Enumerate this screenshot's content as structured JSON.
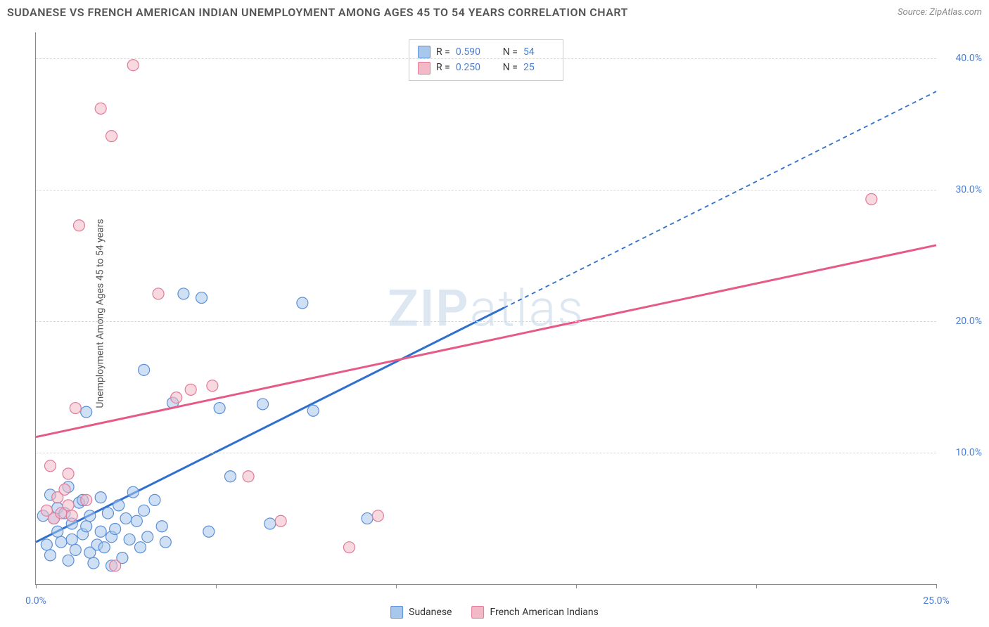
{
  "title": "SUDANESE VS FRENCH AMERICAN INDIAN UNEMPLOYMENT AMONG AGES 45 TO 54 YEARS CORRELATION CHART",
  "source": "Source: ZipAtlas.com",
  "y_axis_label": "Unemployment Among Ages 45 to 54 years",
  "watermark_a": "ZIP",
  "watermark_b": "atlas",
  "chart": {
    "type": "scatter",
    "xlim": [
      0,
      25
    ],
    "ylim": [
      0,
      42
    ],
    "x_ticks": [
      0,
      5,
      10,
      15,
      20,
      25
    ],
    "x_tick_labels": {
      "0": "0.0%",
      "25": "25.0%"
    },
    "y_ticks": [
      10,
      20,
      30,
      40
    ],
    "y_tick_labels": {
      "10": "10.0%",
      "20": "20.0%",
      "30": "30.0%",
      "40": "40.0%"
    },
    "grid_color": "#d8d8d8",
    "background_color": "#ffffff",
    "marker_radius": 8,
    "marker_opacity": 0.55,
    "marker_stroke_width": 1.2,
    "series": [
      {
        "name": "Sudanese",
        "label": "Sudanese",
        "fill": "#a8c7ec",
        "stroke": "#5b8fd6",
        "line_color": "#2e6fd0",
        "line_width": 3,
        "dash_after_x": 13,
        "R_label": "R =",
        "R": "0.590",
        "N_label": "N =",
        "N": "54",
        "trend": {
          "x1": 0,
          "y1": 3.2,
          "x2": 25,
          "y2": 37.5
        },
        "points": [
          [
            0.2,
            5.2
          ],
          [
            0.3,
            3.0
          ],
          [
            0.4,
            6.8
          ],
          [
            0.4,
            2.2
          ],
          [
            0.5,
            5.0
          ],
          [
            0.6,
            4.0
          ],
          [
            0.6,
            5.8
          ],
          [
            0.7,
            3.2
          ],
          [
            0.8,
            5.4
          ],
          [
            0.9,
            1.8
          ],
          [
            1.0,
            4.6
          ],
          [
            1.0,
            3.4
          ],
          [
            1.1,
            2.6
          ],
          [
            1.2,
            6.2
          ],
          [
            1.3,
            3.8
          ],
          [
            1.4,
            4.4
          ],
          [
            1.4,
            13.1
          ],
          [
            1.5,
            2.4
          ],
          [
            1.5,
            5.2
          ],
          [
            1.6,
            1.6
          ],
          [
            1.7,
            3.0
          ],
          [
            1.8,
            6.6
          ],
          [
            1.8,
            4.0
          ],
          [
            1.9,
            2.8
          ],
          [
            2.0,
            5.4
          ],
          [
            2.1,
            3.6
          ],
          [
            2.1,
            1.4
          ],
          [
            2.2,
            4.2
          ],
          [
            2.3,
            6.0
          ],
          [
            2.4,
            2.0
          ],
          [
            2.5,
            5.0
          ],
          [
            2.6,
            3.4
          ],
          [
            2.7,
            7.0
          ],
          [
            2.8,
            4.8
          ],
          [
            2.9,
            2.8
          ],
          [
            3.0,
            5.6
          ],
          [
            3.0,
            16.3
          ],
          [
            3.1,
            3.6
          ],
          [
            3.3,
            6.4
          ],
          [
            3.5,
            4.4
          ],
          [
            3.6,
            3.2
          ],
          [
            3.8,
            13.8
          ],
          [
            4.1,
            22.1
          ],
          [
            4.6,
            21.8
          ],
          [
            4.8,
            4.0
          ],
          [
            5.1,
            13.4
          ],
          [
            5.4,
            8.2
          ],
          [
            6.3,
            13.7
          ],
          [
            6.5,
            4.6
          ],
          [
            7.4,
            21.4
          ],
          [
            7.7,
            13.2
          ],
          [
            9.2,
            5.0
          ],
          [
            0.9,
            7.4
          ],
          [
            1.3,
            6.4
          ]
        ]
      },
      {
        "name": "French American Indians",
        "label": "French American Indians",
        "fill": "#f3b9c6",
        "stroke": "#e17a9a",
        "line_color": "#e55b86",
        "line_width": 3,
        "dash_after_x": 25,
        "R_label": "R =",
        "R": "0.250",
        "N_label": "N =",
        "N": "25",
        "trend": {
          "x1": 0,
          "y1": 11.2,
          "x2": 25,
          "y2": 25.8
        },
        "points": [
          [
            0.3,
            5.6
          ],
          [
            0.4,
            9.0
          ],
          [
            0.5,
            5.0
          ],
          [
            0.6,
            6.6
          ],
          [
            0.7,
            5.4
          ],
          [
            0.8,
            7.2
          ],
          [
            0.9,
            6.0
          ],
          [
            0.9,
            8.4
          ],
          [
            1.0,
            5.2
          ],
          [
            1.1,
            13.4
          ],
          [
            1.2,
            27.3
          ],
          [
            1.4,
            6.4
          ],
          [
            1.8,
            36.2
          ],
          [
            2.1,
            34.1
          ],
          [
            2.2,
            1.4
          ],
          [
            2.7,
            39.5
          ],
          [
            3.4,
            22.1
          ],
          [
            3.9,
            14.2
          ],
          [
            4.3,
            14.8
          ],
          [
            4.9,
            15.1
          ],
          [
            5.9,
            8.2
          ],
          [
            6.8,
            4.8
          ],
          [
            8.7,
            2.8
          ],
          [
            9.5,
            5.2
          ],
          [
            23.2,
            29.3
          ]
        ]
      }
    ]
  }
}
